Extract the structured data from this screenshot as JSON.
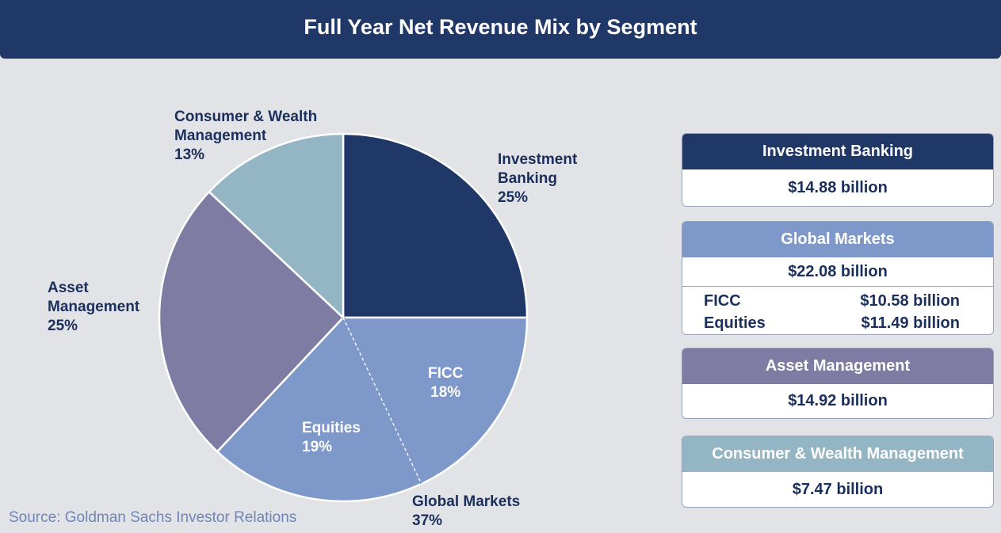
{
  "title": "Full Year Net Revenue Mix by Segment",
  "source": "Source: Goldman Sachs Investor Relations",
  "colors": {
    "banner": "#1f3868",
    "investment_banking": "#1f3868",
    "global_markets": "#7d98c9",
    "asset_management": "#7f7ca3",
    "consumer_wealth": "#93b5c4",
    "label_text": "#1b2f5c"
  },
  "chart_data": {
    "type": "pie",
    "title": "Full Year Net Revenue Mix by Segment",
    "slices": [
      {
        "name": "Investment Banking",
        "percent": 25,
        "label_lines": [
          "Investment",
          "Banking",
          "25%"
        ]
      },
      {
        "name": "FICC",
        "percent": 18,
        "group": "Global Markets",
        "label_lines": [
          "FICC",
          "18%"
        ]
      },
      {
        "name": "Equities",
        "percent": 19,
        "group": "Global Markets",
        "label_lines": [
          "Equities",
          "19%"
        ]
      },
      {
        "name": "Asset Management",
        "percent": 25,
        "label_lines": [
          "Asset",
          "Management",
          "25%"
        ]
      },
      {
        "name": "Consumer & Wealth Management",
        "percent": 13,
        "label_lines": [
          "Consumer & Wealth",
          "Management",
          "13%"
        ]
      }
    ],
    "group_label": {
      "name": "Global Markets",
      "percent": 37,
      "label_lines": [
        "Global Markets",
        "37%"
      ]
    }
  },
  "cards": [
    {
      "title": "Investment Banking",
      "value": "$14.88 billion"
    },
    {
      "title": "Global Markets",
      "value": "$22.08 billion",
      "breakdown": [
        {
          "label": "FICC",
          "value": "$10.58 billion"
        },
        {
          "label": "Equities",
          "value": "$11.49 billion"
        }
      ]
    },
    {
      "title": "Asset Management",
      "value": "$14.92 billion"
    },
    {
      "title": "Consumer & Wealth Management",
      "value": "$7.47 billion"
    }
  ]
}
